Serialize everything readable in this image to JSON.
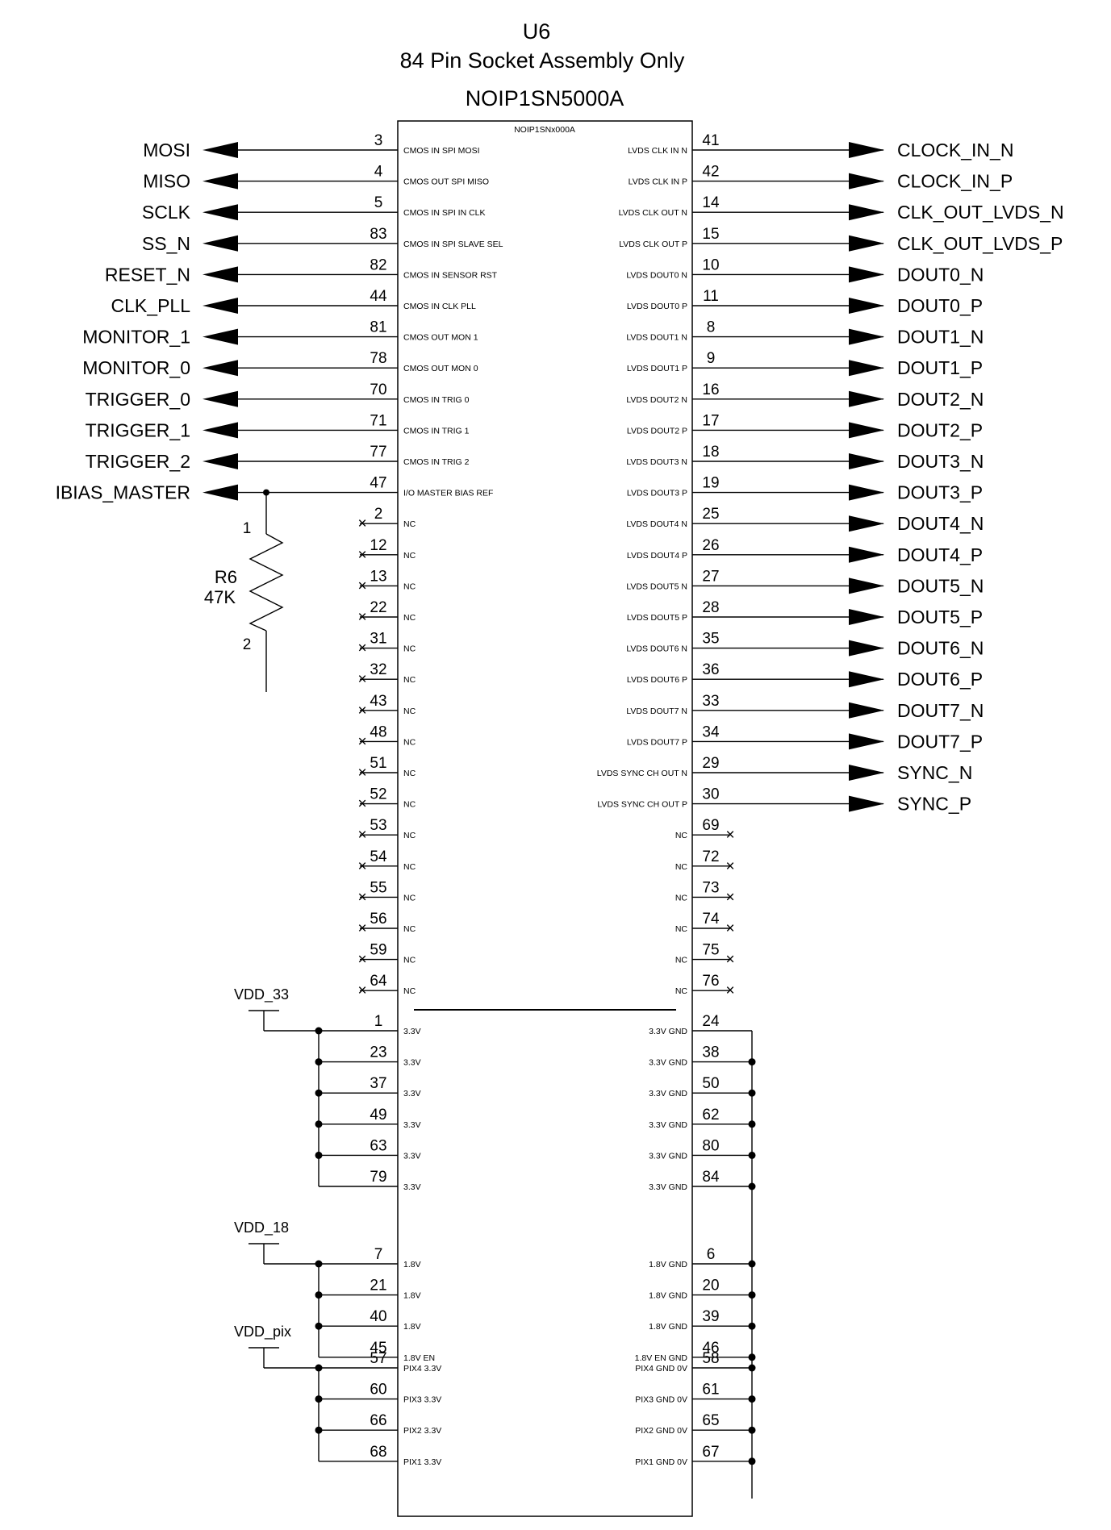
{
  "header": {
    "ref": "U6",
    "note": "84 Pin Socket Assembly Only",
    "part": "NOIP1SN5000A",
    "body_label": "NOIP1SNx000A"
  },
  "left_signals": [
    {
      "net": "MOSI",
      "pin": "3",
      "fn": "CMOS IN SPI MOSI"
    },
    {
      "net": "MISO",
      "pin": "4",
      "fn": "CMOS OUT SPI MISO"
    },
    {
      "net": "SCLK",
      "pin": "5",
      "fn": "CMOS IN SPI IN CLK"
    },
    {
      "net": "SS_N",
      "pin": "83",
      "fn": "CMOS IN SPI SLAVE SEL"
    },
    {
      "net": "RESET_N",
      "pin": "82",
      "fn": "CMOS IN SENSOR RST"
    },
    {
      "net": "CLK_PLL",
      "pin": "44",
      "fn": "CMOS IN CLK PLL"
    },
    {
      "net": "MONITOR_1",
      "pin": "81",
      "fn": "CMOS OUT MON 1"
    },
    {
      "net": "MONITOR_0",
      "pin": "78",
      "fn": "CMOS OUT MON 0"
    },
    {
      "net": "TRIGGER_0",
      "pin": "70",
      "fn": "CMOS IN TRIG 0"
    },
    {
      "net": "TRIGGER_1",
      "pin": "71",
      "fn": "CMOS IN TRIG 1"
    },
    {
      "net": "TRIGGER_2",
      "pin": "77",
      "fn": "CMOS IN TRIG 2"
    },
    {
      "net": "IBIAS_MASTER",
      "pin": "47",
      "fn": "I/O MASTER BIAS REF"
    }
  ],
  "left_nc": [
    "2",
    "12",
    "13",
    "22",
    "31",
    "32",
    "43",
    "48",
    "51",
    "52",
    "53",
    "54",
    "55",
    "56",
    "59",
    "64"
  ],
  "right_signals": [
    {
      "net": "CLOCK_IN_N",
      "pin": "41",
      "fn": "LVDS CLK IN N"
    },
    {
      "net": "CLOCK_IN_P",
      "pin": "42",
      "fn": "LVDS CLK IN P"
    },
    {
      "net": "CLK_OUT_LVDS_N",
      "pin": "14",
      "fn": "LVDS CLK OUT N"
    },
    {
      "net": "CLK_OUT_LVDS_P",
      "pin": "15",
      "fn": "LVDS CLK OUT P"
    },
    {
      "net": "DOUT0_N",
      "pin": "10",
      "fn": "LVDS DOUT0 N"
    },
    {
      "net": "DOUT0_P",
      "pin": "11",
      "fn": "LVDS DOUT0 P"
    },
    {
      "net": "DOUT1_N",
      "pin": "8",
      "fn": "LVDS DOUT1 N"
    },
    {
      "net": "DOUT1_P",
      "pin": "9",
      "fn": "LVDS DOUT1 P"
    },
    {
      "net": "DOUT2_N",
      "pin": "16",
      "fn": "LVDS DOUT2 N"
    },
    {
      "net": "DOUT2_P",
      "pin": "17",
      "fn": "LVDS DOUT2 P"
    },
    {
      "net": "DOUT3_N",
      "pin": "18",
      "fn": "LVDS DOUT3 N"
    },
    {
      "net": "DOUT3_P",
      "pin": "19",
      "fn": "LVDS DOUT3 P"
    },
    {
      "net": "DOUT4_N",
      "pin": "25",
      "fn": "LVDS DOUT4 N"
    },
    {
      "net": "DOUT4_P",
      "pin": "26",
      "fn": "LVDS DOUT4 P"
    },
    {
      "net": "DOUT5_N",
      "pin": "27",
      "fn": "LVDS DOUT5 N"
    },
    {
      "net": "DOUT5_P",
      "pin": "28",
      "fn": "LVDS DOUT5 P"
    },
    {
      "net": "DOUT6_N",
      "pin": "35",
      "fn": "LVDS DOUT6 N"
    },
    {
      "net": "DOUT6_P",
      "pin": "36",
      "fn": "LVDS DOUT6 P"
    },
    {
      "net": "DOUT7_N",
      "pin": "33",
      "fn": "LVDS DOUT7 N"
    },
    {
      "net": "DOUT7_P",
      "pin": "34",
      "fn": "LVDS DOUT7 P"
    },
    {
      "net": "SYNC_N",
      "pin": "29",
      "fn": "LVDS SYNC CH OUT N"
    },
    {
      "net": "SYNC_P",
      "pin": "30",
      "fn": "LVDS SYNC CH OUT P"
    }
  ],
  "right_nc": [
    "69",
    "72",
    "73",
    "74",
    "75",
    "76"
  ],
  "nc_label": "NC",
  "resistor": {
    "ref": "R6",
    "value": "47K",
    "pin1": "1",
    "pin2": "2"
  },
  "supplies": [
    {
      "net": "VDD_33",
      "pins": [
        {
          "pin": "1",
          "fn": "3.3V"
        },
        {
          "pin": "23",
          "fn": "3.3V"
        },
        {
          "pin": "37",
          "fn": "3.3V"
        },
        {
          "pin": "49",
          "fn": "3.3V"
        },
        {
          "pin": "63",
          "fn": "3.3V"
        },
        {
          "pin": "79",
          "fn": "3.3V"
        }
      ]
    },
    {
      "net": "VDD_18",
      "pins": [
        {
          "pin": "7",
          "fn": "1.8V"
        },
        {
          "pin": "21",
          "fn": "1.8V"
        },
        {
          "pin": "40",
          "fn": "1.8V"
        },
        {
          "pin": "45",
          "fn": "1.8V EN"
        }
      ]
    },
    {
      "net": "VDD_pix",
      "pins": [
        {
          "pin": "57",
          "fn": "PIX4 3.3V"
        },
        {
          "pin": "60",
          "fn": "PIX3 3.3V"
        },
        {
          "pin": "66",
          "fn": "PIX2 3.3V"
        },
        {
          "pin": "68",
          "fn": "PIX1 3.3V"
        }
      ]
    }
  ],
  "grounds": [
    {
      "pin": "24",
      "fn": "3.3V GND"
    },
    {
      "pin": "38",
      "fn": "3.3V GND"
    },
    {
      "pin": "50",
      "fn": "3.3V GND"
    },
    {
      "pin": "62",
      "fn": "3.3V GND"
    },
    {
      "pin": "80",
      "fn": "3.3V GND"
    },
    {
      "pin": "84",
      "fn": "3.3V GND"
    },
    {
      "pin": "6",
      "fn": "1.8V GND"
    },
    {
      "pin": "20",
      "fn": "1.8V GND"
    },
    {
      "pin": "39",
      "fn": "1.8V GND"
    },
    {
      "pin": "46",
      "fn": "1.8V EN GND"
    },
    {
      "pin": "58",
      "fn": "PIX4 GND 0V"
    },
    {
      "pin": "61",
      "fn": "PIX3 GND 0V"
    },
    {
      "pin": "65",
      "fn": "PIX2 GND 0V"
    },
    {
      "pin": "67",
      "fn": "PIX1 GND 0V"
    }
  ]
}
